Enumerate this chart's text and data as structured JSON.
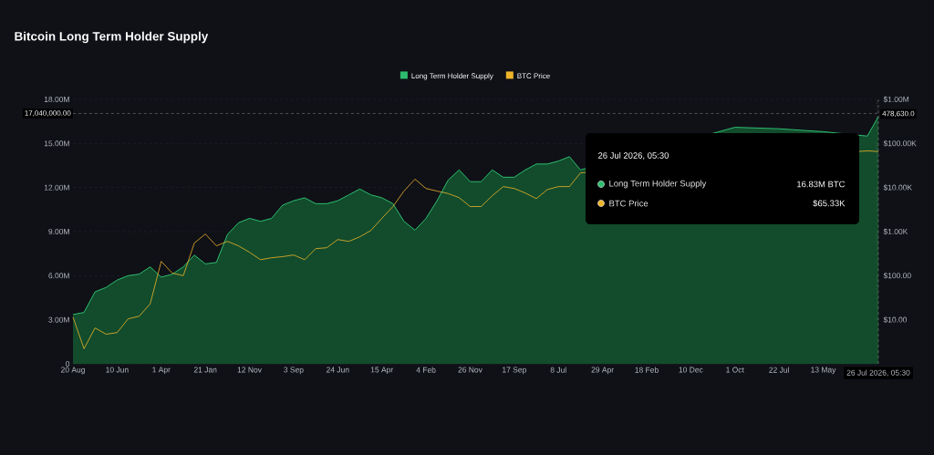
{
  "chart_data": {
    "type": "area",
    "title": "Bitcoin Long Term Holder Supply",
    "categories": [
      "20 Aug",
      null,
      null,
      null,
      "10 Jun",
      null,
      null,
      null,
      "1 Apr",
      null,
      null,
      null,
      "21 Jan",
      null,
      null,
      null,
      "12 Nov",
      null,
      null,
      null,
      "3 Sep",
      null,
      null,
      null,
      "24 Jun",
      null,
      null,
      null,
      "15 Apr",
      null,
      null,
      null,
      "4 Feb",
      null,
      null,
      null,
      "26 Nov",
      null,
      null,
      null,
      "17 Sep",
      null,
      null,
      null,
      "8 Jul",
      null,
      null,
      null,
      "29 Apr",
      null,
      null,
      null,
      "18 Feb",
      null,
      null,
      null,
      "10 Dec",
      null,
      null,
      null,
      "1 Oct",
      null,
      null,
      null,
      "22 Jul",
      null,
      null,
      null,
      "13 May",
      null,
      null,
      null,
      null,
      "26 Jul 2026, 05:30"
    ],
    "series": [
      {
        "name": "Long Term Holder Supply",
        "type": "area",
        "color": "#2ebd6e",
        "values": [
          3350000,
          3500000,
          4900000,
          5200000,
          5700000,
          6000000,
          6100000,
          6600000,
          5900000,
          6100000,
          6600000,
          7400000,
          6800000,
          6900000,
          8800000,
          9600000,
          9900000,
          9700000,
          9900000,
          10800000,
          11100000,
          11300000,
          10900000,
          10900000,
          11100000,
          11500000,
          11900000,
          11500000,
          11300000,
          10900000,
          9700000,
          9100000,
          9900000,
          11100000,
          12500000,
          13200000,
          12400000,
          12400000,
          13200000,
          12700000,
          12700000,
          13200000,
          13600000,
          13600000,
          13800000,
          14100000,
          13200000,
          null,
          null,
          null,
          null,
          null,
          null,
          null,
          null,
          null,
          null,
          null,
          null,
          null,
          16100000,
          null,
          null,
          null,
          16000000,
          null,
          null,
          null,
          15800000,
          null,
          null,
          null,
          15500000,
          16830000
        ]
      },
      {
        "name": "BTC Price",
        "type": "line",
        "axis": "y2",
        "color": "#f0b429",
        "values": [
          11.5,
          2.2,
          6.5,
          4.7,
          5.1,
          10.5,
          12,
          23,
          211,
          114,
          100,
          550,
          880,
          475,
          600,
          475,
          340,
          230,
          255,
          270,
          295,
          230,
          410,
          430,
          660,
          600,
          760,
          1060,
          2000,
          3700,
          8300,
          15500,
          9500,
          8300,
          7300,
          5900,
          3700,
          3700,
          6500,
          10500,
          9500,
          7500,
          5600,
          9000,
          10500,
          10500,
          21500,
          null,
          null,
          null,
          null,
          null,
          null,
          null,
          null,
          null,
          null,
          null,
          null,
          null,
          null,
          null,
          null,
          null,
          null,
          null,
          null,
          null,
          null,
          null,
          null,
          null,
          68000,
          65330
        ]
      }
    ],
    "ylim": [
      0,
      18000000
    ],
    "yticks": [
      0,
      {
        "value": 3000000,
        "label": "3.00M"
      },
      {
        "value": 6000000,
        "label": "6.00M"
      },
      {
        "value": 9000000,
        "label": "9.00M"
      },
      {
        "value": 12000000,
        "label": "12.00M"
      },
      {
        "value": 15000000,
        "label": "15.00M"
      },
      {
        "value": 18000000,
        "label": "18.00M"
      }
    ],
    "log": "y2",
    "y2lim": [
      1,
      1000000
    ],
    "y2ticks": [
      {
        "value": 10,
        "label": "$10.00"
      },
      {
        "value": 100,
        "label": "$100.00"
      },
      {
        "value": 1000,
        "label": "$1.00K"
      },
      {
        "value": 10000,
        "label": "$10.00K"
      },
      {
        "value": 100000,
        "label": "$100.00K"
      },
      {
        "value": 1000000,
        "label": "$1.00M"
      }
    ],
    "grid": "y",
    "legend": "top",
    "ref_lines": [
      {
        "axis": "y",
        "value": 17040000,
        "label": "17,040,000.00"
      },
      {
        "axis": "x",
        "value": "26 Jul 2026, 05:30"
      }
    ],
    "annotations": [
      "16.83M BTC",
      "$65.33K",
      "478,630.0"
    ]
  }
}
